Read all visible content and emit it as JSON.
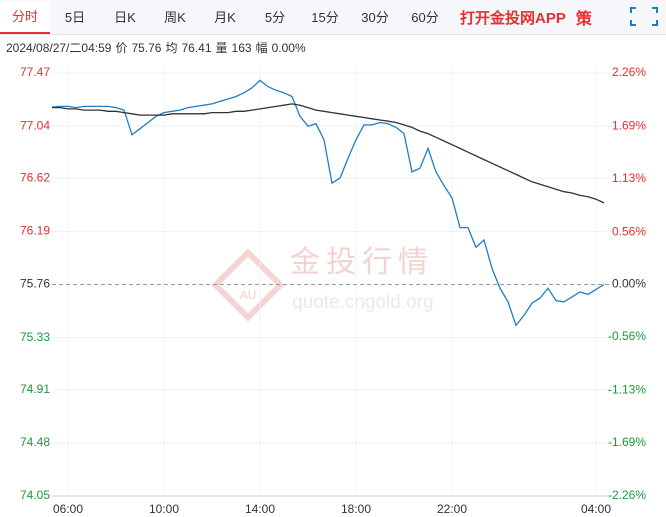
{
  "tabs": [
    "分时",
    "5日",
    "日K",
    "周K",
    "月K",
    "5分",
    "15分",
    "30分",
    "60分"
  ],
  "app_link": "打开金投网APP",
  "strategy_icon": "策",
  "info": {
    "datetime": "2024/08/27/二04:59",
    "items": [
      {
        "label": "价",
        "value": "75.76"
      },
      {
        "label": "均",
        "value": "76.41"
      },
      {
        "label": "量",
        "value": "163"
      },
      {
        "label": "幅",
        "value": "0.00%"
      }
    ]
  },
  "watermark": {
    "logo": "AU",
    "name": "金投行情",
    "url": "quote.cngold.org"
  },
  "chart_data": {
    "type": "line",
    "x": [
      "05:20",
      "05:40",
      "06:00",
      "06:20",
      "06:40",
      "07:00",
      "07:20",
      "07:40",
      "08:00",
      "08:20",
      "08:40",
      "09:00",
      "09:20",
      "09:40",
      "10:00",
      "10:20",
      "10:40",
      "11:00",
      "11:20",
      "11:40",
      "12:00",
      "12:20",
      "12:40",
      "13:00",
      "13:20",
      "13:40",
      "14:00",
      "14:20",
      "14:40",
      "15:00",
      "15:20",
      "15:40",
      "16:00",
      "16:20",
      "16:40",
      "17:00",
      "17:20",
      "17:40",
      "18:00",
      "18:20",
      "18:40",
      "19:00",
      "19:20",
      "19:40",
      "20:00",
      "20:20",
      "20:40",
      "21:00",
      "21:20",
      "21:40",
      "22:00",
      "22:20",
      "22:40",
      "23:00",
      "23:20",
      "23:40",
      "00:00",
      "00:20",
      "00:40",
      "01:00",
      "01:20",
      "01:40",
      "02:00",
      "02:20",
      "02:40",
      "03:00",
      "03:20",
      "03:40",
      "04:00",
      "04:20"
    ],
    "xlim": [
      "05:20",
      "04:40"
    ],
    "xticks": [
      "06:00",
      "10:00",
      "14:00",
      "18:00",
      "22:00",
      "04:00"
    ],
    "series": [
      {
        "name": "价",
        "color": "#1f7fc1",
        "values": [
          77.195,
          77.2,
          77.2,
          77.19,
          77.2,
          77.2,
          77.2,
          77.2,
          77.19,
          77.17,
          76.97,
          77.02,
          77.07,
          77.12,
          77.15,
          77.16,
          77.17,
          77.19,
          77.2,
          77.21,
          77.22,
          77.24,
          77.26,
          77.28,
          77.31,
          77.35,
          77.41,
          77.36,
          77.33,
          77.31,
          77.28,
          77.12,
          77.04,
          77.06,
          76.93,
          76.58,
          76.62,
          76.78,
          76.93,
          77.05,
          77.05,
          77.07,
          77.06,
          77.03,
          76.98,
          76.67,
          76.7,
          76.86,
          76.67,
          76.56,
          76.46,
          76.22,
          76.22,
          76.06,
          76.12,
          75.89,
          75.73,
          75.62,
          75.43,
          75.51,
          75.61,
          75.65,
          75.73,
          75.63,
          75.62,
          75.66,
          75.7,
          75.68,
          75.72,
          75.76
        ]
      },
      {
        "name": "均",
        "color": "#333333",
        "values": [
          77.19,
          77.19,
          77.18,
          77.18,
          77.17,
          77.17,
          77.17,
          77.16,
          77.16,
          77.15,
          77.14,
          77.13,
          77.13,
          77.13,
          77.13,
          77.14,
          77.14,
          77.14,
          77.14,
          77.14,
          77.15,
          77.15,
          77.15,
          77.16,
          77.16,
          77.17,
          77.18,
          77.19,
          77.2,
          77.21,
          77.22,
          77.21,
          77.19,
          77.17,
          77.16,
          77.15,
          77.14,
          77.13,
          77.12,
          77.11,
          77.1,
          77.09,
          77.08,
          77.07,
          77.05,
          77.03,
          77.0,
          76.98,
          76.95,
          76.92,
          76.89,
          76.86,
          76.83,
          76.8,
          76.77,
          76.74,
          76.71,
          76.68,
          76.65,
          76.62,
          76.59,
          76.57,
          76.55,
          76.53,
          76.51,
          76.5,
          76.48,
          76.47,
          76.45,
          76.42
        ]
      }
    ],
    "base": 75.76,
    "ylim": [
      74.05,
      77.47
    ],
    "yticks": [
      77.47,
      77.04,
      76.62,
      76.19,
      75.76,
      75.33,
      74.91,
      74.48,
      74.05
    ],
    "y2lim": [
      -2.26,
      2.26
    ],
    "y2ticks": [
      {
        "value": 2.26,
        "label": "2.26%"
      },
      {
        "value": 1.69,
        "label": "1.69%"
      },
      {
        "value": 1.13,
        "label": "1.13%"
      },
      {
        "value": 0.56,
        "label": "0.56%"
      },
      {
        "value": 0,
        "label": "0.00%"
      },
      {
        "value": -0.56,
        "label": "-0.56%"
      },
      {
        "value": -1.13,
        "label": "-1.13%"
      },
      {
        "value": -1.69,
        "label": "-1.69%"
      },
      {
        "value": -2.26,
        "label": "-2.26%"
      }
    ],
    "grid": true,
    "up_color": "#e5302f",
    "down_color": "#1a9a3a",
    "flat_color": "#333333"
  }
}
